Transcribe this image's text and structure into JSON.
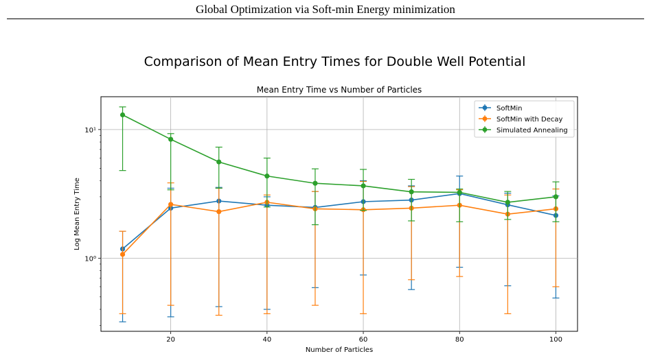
{
  "header": {
    "running_title": "Global Optimization via Soft-min Energy minimization"
  },
  "figure": {
    "title": "Comparison of Mean Entry Times for Double Well Potential"
  },
  "chart_data": {
    "type": "line",
    "title": "Mean Entry Time vs Number of Particles",
    "xlabel": "Number of Particles",
    "ylabel": "Log Mean Entry Time",
    "yscale": "log",
    "xlim": [
      5.5,
      104.5
    ],
    "ylim": [
      0.27,
      18
    ],
    "x_ticks": [
      20,
      40,
      60,
      80,
      100
    ],
    "y_ticks": [
      {
        "value": 1,
        "label": "10⁰"
      },
      {
        "value": 10,
        "label": "10¹"
      }
    ],
    "grid": true,
    "legend_position": "top-right",
    "x": [
      10,
      20,
      30,
      40,
      50,
      60,
      70,
      80,
      90,
      100
    ],
    "series": [
      {
        "name": "SoftMin",
        "color": "#1f77b4",
        "values": [
          1.18,
          2.45,
          2.78,
          2.58,
          2.48,
          2.75,
          2.83,
          3.18,
          2.6,
          2.15
        ],
        "err_low": [
          0.32,
          0.35,
          0.42,
          0.4,
          0.59,
          0.74,
          0.57,
          0.85,
          0.61,
          0.49
        ],
        "err_high": [
          1.62,
          3.5,
          3.55,
          3.0,
          3.3,
          4.0,
          3.65,
          4.35,
          3.2,
          3.05
        ]
      },
      {
        "name": "SoftMin with Decay",
        "color": "#ff7f0e",
        "values": [
          1.07,
          2.62,
          2.3,
          2.72,
          2.42,
          2.38,
          2.45,
          2.58,
          2.2,
          2.42
        ],
        "err_low": [
          0.37,
          0.43,
          0.36,
          0.37,
          0.43,
          0.37,
          0.68,
          0.72,
          0.37,
          0.6
        ],
        "err_high": [
          1.62,
          3.85,
          3.5,
          3.1,
          3.3,
          3.95,
          3.6,
          3.4,
          3.1,
          3.45
        ]
      },
      {
        "name": "Simulated Annealing",
        "color": "#2ca02c",
        "values": [
          13.0,
          8.4,
          5.6,
          4.35,
          3.82,
          3.65,
          3.28,
          3.25,
          2.72,
          3.0
        ],
        "err_low": [
          4.8,
          3.4,
          3.5,
          2.5,
          1.82,
          2.35,
          1.95,
          1.92,
          2.0,
          1.92
        ],
        "err_high": [
          15.0,
          9.3,
          7.3,
          6.0,
          4.95,
          4.9,
          4.1,
          3.45,
          3.3,
          3.92
        ]
      }
    ]
  }
}
